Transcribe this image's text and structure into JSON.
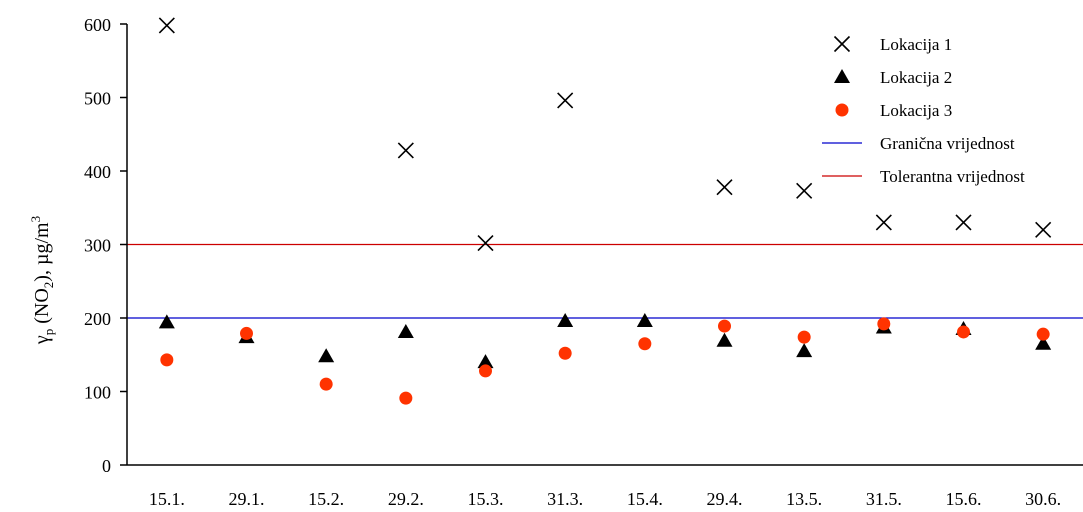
{
  "chart_data": {
    "type": "scatter",
    "title": "",
    "xlabel": "",
    "ylabel": {
      "prefix": "γ",
      "prefix_sub": "p",
      "mid": " (NO",
      "mid_sub": "2",
      "suffix": "), µg/m",
      "suffix_sup": "3"
    },
    "ylim": [
      0,
      600
    ],
    "yticks": [
      0,
      100,
      200,
      300,
      400,
      500,
      600
    ],
    "categories": [
      "15.1.",
      "29.1.",
      "15.2.",
      "29.2.",
      "15.3.",
      "31.3.",
      "15.4.",
      "29.4.",
      "13.5.",
      "31.5.",
      "15.6.",
      "30.6."
    ],
    "series": [
      {
        "name": "Lokacija 1",
        "marker": "x",
        "color": "#000000",
        "values": [
          598,
          null,
          null,
          428,
          302,
          496,
          null,
          378,
          373,
          330,
          330,
          320
        ]
      },
      {
        "name": "Lokacija 2",
        "marker": "triangle",
        "color": "#000000",
        "values": [
          194,
          174,
          148,
          181,
          140,
          196,
          196,
          169,
          155,
          187,
          185,
          165
        ]
      },
      {
        "name": "Lokacija 3",
        "marker": "circle",
        "color": "#ff3300",
        "values": [
          143,
          179,
          110,
          91,
          128,
          152,
          165,
          189,
          174,
          192,
          181,
          178
        ]
      }
    ],
    "reference_lines": [
      {
        "name": "Granična vrijednost",
        "value": 200,
        "color": "#0000cc"
      },
      {
        "name": "Tolerantna vrijednost",
        "value": 300,
        "color": "#cc0000"
      }
    ],
    "grid": false,
    "legend": "top-right"
  }
}
